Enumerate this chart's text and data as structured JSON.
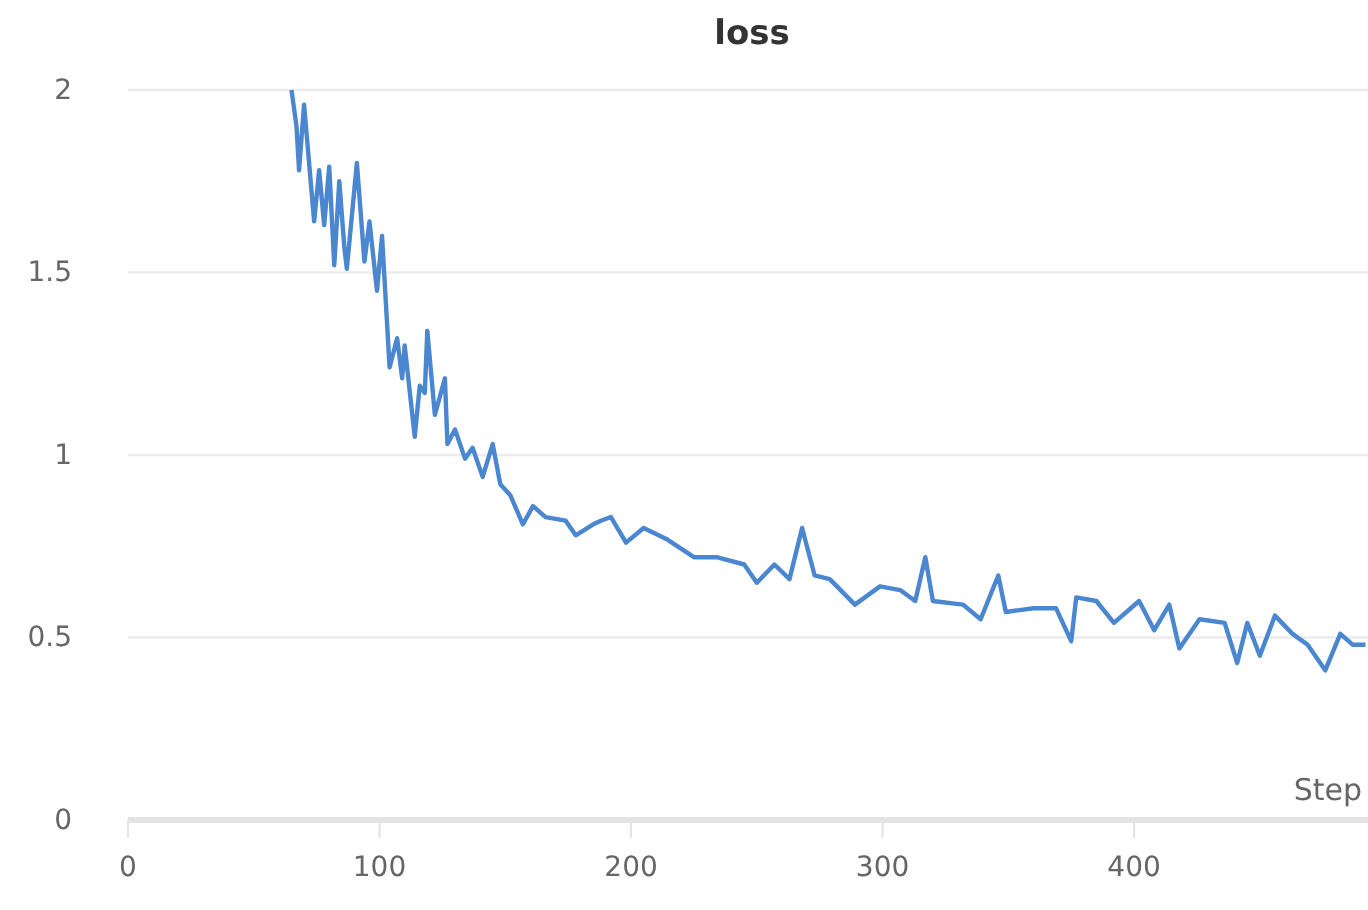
{
  "chart_data": {
    "type": "line",
    "title": "loss",
    "xlabel": "Step",
    "xlim": [
      0,
      493
    ],
    "xticks": [
      0,
      100,
      200,
      300,
      400
    ],
    "ylim": [
      0,
      2
    ],
    "yticks": [
      0,
      0.5,
      1,
      1.5,
      2
    ],
    "grid": "y",
    "series": [
      {
        "color": "#4a87d0",
        "x": [
          65,
          67,
          68,
          70,
          74,
          76,
          78,
          80,
          82,
          84,
          86,
          87,
          91,
          94,
          96,
          99,
          101,
          104,
          107,
          109,
          110,
          114,
          116,
          118,
          119,
          122,
          126,
          127,
          130,
          134,
          137,
          141,
          145,
          148,
          152,
          157,
          161,
          166,
          174,
          178,
          185,
          188,
          192,
          198,
          205,
          214,
          225,
          234,
          245,
          250,
          257,
          263,
          268,
          273,
          279,
          289,
          299,
          307,
          313,
          317,
          320,
          332,
          339,
          346,
          349,
          360,
          369,
          375,
          377,
          385,
          392,
          402,
          408,
          414,
          418,
          426,
          436,
          441,
          445,
          450,
          456,
          463,
          469,
          476,
          482,
          487,
          492
        ],
        "values": [
          2.0,
          1.9,
          1.78,
          1.96,
          1.64,
          1.78,
          1.63,
          1.79,
          1.52,
          1.75,
          1.57,
          1.51,
          1.8,
          1.53,
          1.64,
          1.45,
          1.6,
          1.24,
          1.32,
          1.21,
          1.3,
          1.05,
          1.19,
          1.17,
          1.34,
          1.11,
          1.21,
          1.03,
          1.07,
          0.99,
          1.02,
          0.94,
          1.03,
          0.92,
          0.89,
          0.81,
          0.86,
          0.83,
          0.82,
          0.78,
          0.81,
          0.82,
          0.83,
          0.76,
          0.8,
          0.77,
          0.72,
          0.72,
          0.7,
          0.65,
          0.7,
          0.66,
          0.8,
          0.67,
          0.66,
          0.59,
          0.64,
          0.63,
          0.6,
          0.72,
          0.6,
          0.59,
          0.55,
          0.67,
          0.57,
          0.58,
          0.58,
          0.49,
          0.61,
          0.6,
          0.54,
          0.6,
          0.52,
          0.59,
          0.47,
          0.55,
          0.54,
          0.43,
          0.54,
          0.45,
          0.56,
          0.51,
          0.48,
          0.41,
          0.51,
          0.48,
          0.48
        ]
      }
    ]
  }
}
